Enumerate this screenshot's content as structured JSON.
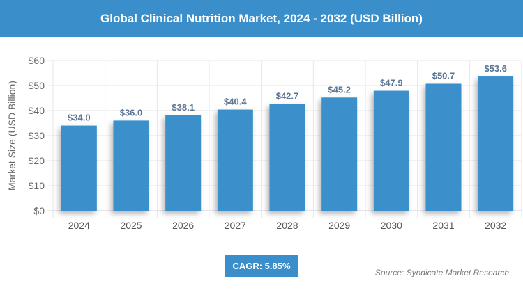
{
  "title": "Global Clinical Nutrition Market, 2024 - 2032 (USD Billion)",
  "cagr": "CAGR: 5.85%",
  "source": "Source: Syndicate Market Research",
  "colors": {
    "bar": "#3a8fca",
    "header": "#3a8fca",
    "label": "#5a7494"
  },
  "chart_data": {
    "type": "bar",
    "title": "Global Clinical Nutrition Market, 2024 - 2032 (USD Billion)",
    "ylabel": "Market Size (USD Billion)",
    "xlabel": "",
    "categories": [
      "2024",
      "2025",
      "2026",
      "2027",
      "2028",
      "2029",
      "2030",
      "2031",
      "2032"
    ],
    "values": [
      34.0,
      36.0,
      38.1,
      40.4,
      42.7,
      45.2,
      47.9,
      50.7,
      53.6
    ],
    "data_labels": [
      "$34.0",
      "$36.0",
      "$38.1",
      "$40.4",
      "$42.7",
      "$45.2",
      "$47.9",
      "$50.7",
      "$53.6"
    ],
    "ylim": [
      0,
      60
    ],
    "yticks": [
      "$0",
      "$10",
      "$20",
      "$30",
      "$40",
      "$50",
      "$60"
    ],
    "grid": true
  }
}
